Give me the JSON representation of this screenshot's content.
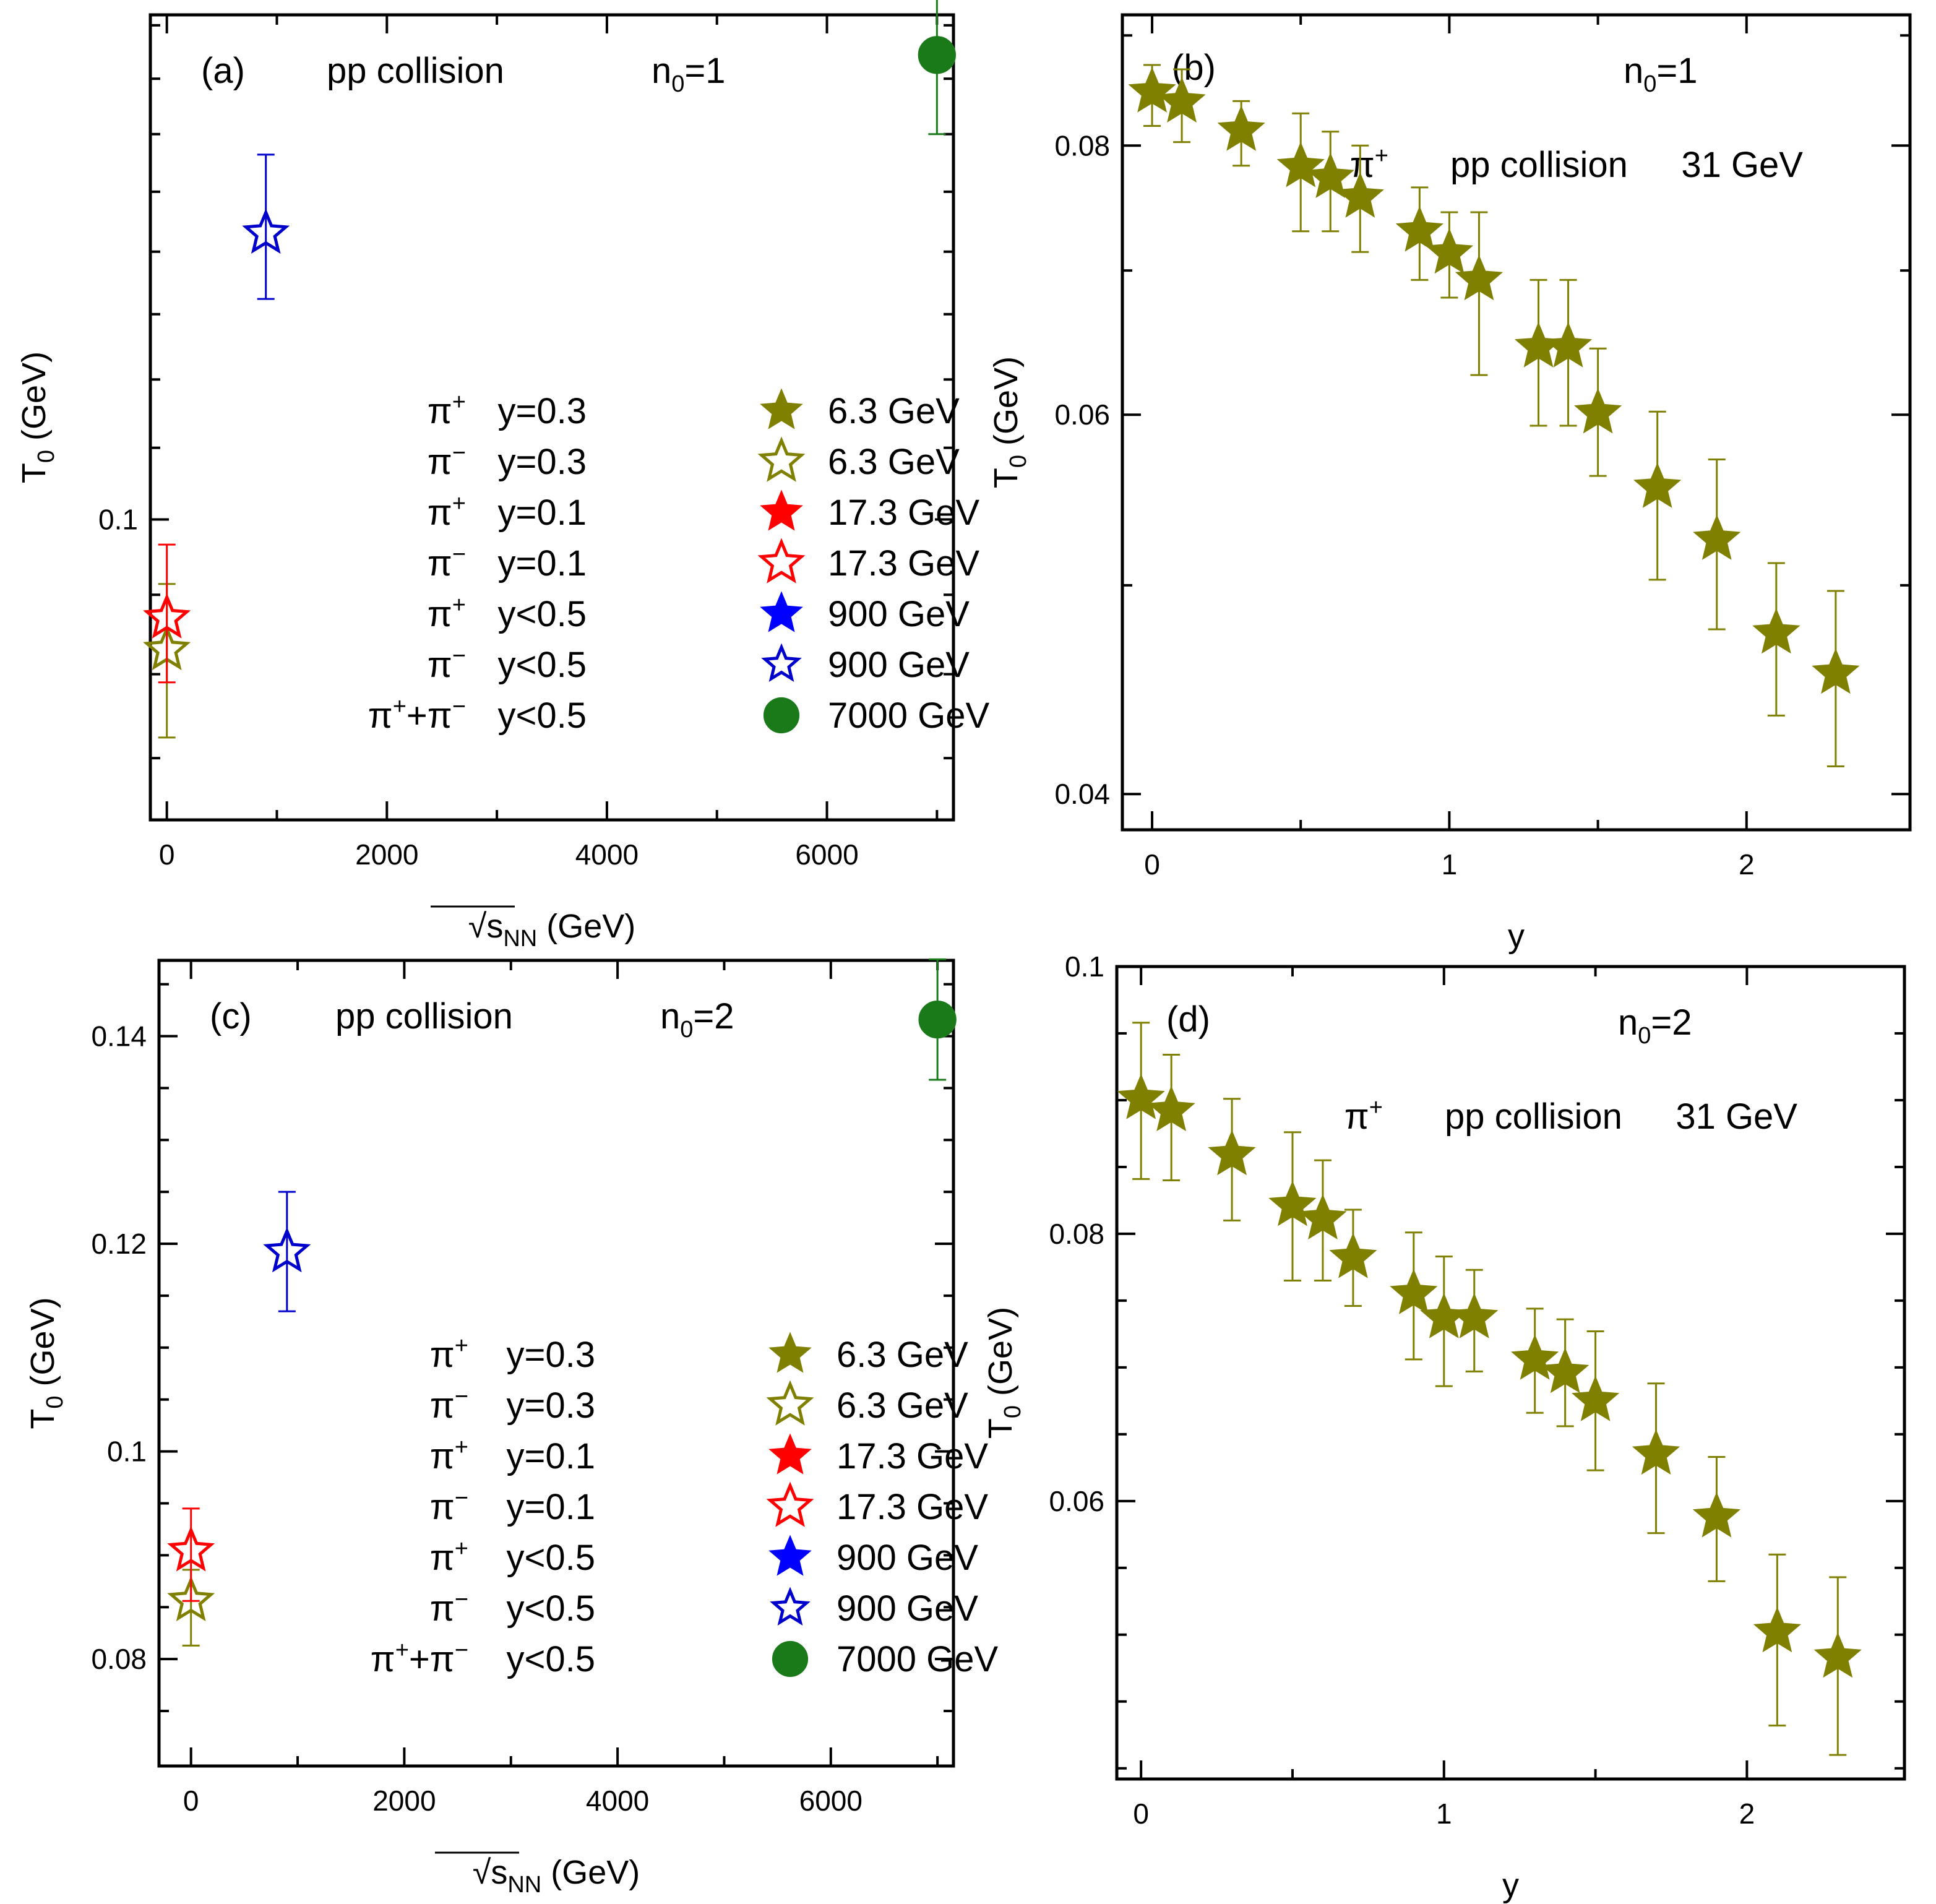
{
  "chart_data": [
    {
      "id": "a",
      "type": "scatter",
      "panel_label": "(a)",
      "collision_label": "pp collision",
      "n0_label": "n",
      "n0_sub": "0",
      "n0_value": "=1",
      "xlabel_radical": "√",
      "xlabel_var": "s",
      "xlabel_sub": "NN",
      "xlabel_unit": " (GeV)",
      "ylabel_var": "T",
      "ylabel_sub": "0",
      "ylabel_unit": " (GeV)",
      "scale": "log",
      "xlim": [
        -150,
        7150
      ],
      "ylim": [
        0.0815,
        0.141
      ],
      "xticks": [
        {
          "v": 0,
          "label": "0"
        },
        {
          "v": 2000,
          "label": "2000"
        },
        {
          "v": 4000,
          "label": "4000"
        },
        {
          "v": 6000,
          "label": "6000"
        }
      ],
      "xminor": [
        1000,
        3000,
        5000,
        7000
      ],
      "yticks": [
        {
          "v": 0.1,
          "label": "0.1"
        }
      ],
      "yminor": [
        0.085,
        0.09,
        0.095,
        0.105,
        0.11,
        0.115,
        0.12,
        0.125,
        0.13,
        0.135,
        0.14
      ],
      "points": [
        {
          "x": 0,
          "y": 0.0915,
          "err_lo": 0.0053,
          "err_hi": 0.0042,
          "marker": "star-open",
          "color": "#808000"
        },
        {
          "x": 0,
          "y": 0.0935,
          "err_lo": 0.004,
          "err_hi": 0.0048,
          "marker": "star-open",
          "color": "#ff0000"
        },
        {
          "x": 900,
          "y": 0.1215,
          "err_lo": 0.0053,
          "err_hi": 0.0067,
          "marker": "star-open",
          "color": "#0000cc"
        },
        {
          "x": 7000,
          "y": 0.1372,
          "err_lo": 0.0072,
          "err_hi": 0.0073,
          "marker": "circle",
          "color": "#1a7a1a"
        }
      ],
      "legend": [
        {
          "particle": "π",
          "sup": "+",
          "y_text": "y=0.3",
          "marker": "star-filled",
          "color": "#808000",
          "energy": "6.3 GeV"
        },
        {
          "particle": "π",
          "sup": "−",
          "y_text": "y=0.3",
          "marker": "star-open",
          "color": "#808000",
          "energy": "6.3 GeV"
        },
        {
          "particle": "π",
          "sup": "+",
          "y_text": "y=0.1",
          "marker": "star-filled",
          "color": "#ff0000",
          "energy": "17.3 GeV"
        },
        {
          "particle": "π",
          "sup": "−",
          "y_text": "y=0.1",
          "marker": "star-open",
          "color": "#ff0000",
          "energy": "17.3 GeV"
        },
        {
          "particle": "π",
          "sup": "+",
          "y_text": "y<0.5",
          "marker": "star-filled",
          "color": "#0000ff",
          "energy": "900 GeV"
        },
        {
          "particle": "π",
          "sup": "−",
          "y_text": "y<0.5",
          "marker": "star-open",
          "color": "#0000cc",
          "energy": "900 GeV"
        },
        {
          "particle": "π",
          "sup": "+",
          "particle2": "+π",
          "sup2": "−",
          "y_text": "y<0.5",
          "marker": "circle",
          "color": "#1a7a1a",
          "energy": "7000 GeV"
        }
      ]
    },
    {
      "id": "b",
      "type": "scatter",
      "panel_label": "(b)",
      "n0_label": "n",
      "n0_sub": "0",
      "n0_value": "=1",
      "particle": "π",
      "particle_sup": "+",
      "collision_label": "pp collision",
      "energy_label": "31 GeV",
      "xlabel": "y",
      "ylabel_var": "T",
      "ylabel_sub": "0",
      "ylabel_unit": " (GeV)",
      "scale": "log",
      "xlim": [
        -0.1,
        2.55
      ],
      "ylim": [
        0.0385,
        0.092
      ],
      "xticks": [
        {
          "v": 0,
          "label": "0"
        },
        {
          "v": 1,
          "label": "1"
        },
        {
          "v": 2,
          "label": "2"
        }
      ],
      "xminor": [
        0.5,
        1.5
      ],
      "yticks": [
        {
          "v": 0.04,
          "label": "0.04"
        },
        {
          "v": 0.06,
          "label": "0.06"
        },
        {
          "v": 0.08,
          "label": "0.08"
        }
      ],
      "yminor": [
        0.05,
        0.07,
        0.09
      ],
      "marker": "star-filled",
      "color": "#808000",
      "points": [
        {
          "x": 0.0,
          "y": 0.0847,
          "err_lo": 0.003,
          "err_hi": 0.0025
        },
        {
          "x": 0.1,
          "y": 0.0838,
          "err_lo": 0.0035,
          "err_hi": 0.003
        },
        {
          "x": 0.3,
          "y": 0.0813,
          "err_lo": 0.003,
          "err_hi": 0.0026
        },
        {
          "x": 0.5,
          "y": 0.0782,
          "err_lo": 0.0052,
          "err_hi": 0.0046
        },
        {
          "x": 0.6,
          "y": 0.0773,
          "err_lo": 0.0043,
          "err_hi": 0.0039
        },
        {
          "x": 0.7,
          "y": 0.0757,
          "err_lo": 0.0043,
          "err_hi": 0.0043
        },
        {
          "x": 0.9,
          "y": 0.073,
          "err_lo": 0.0037,
          "err_hi": 0.0035
        },
        {
          "x": 1.0,
          "y": 0.0713,
          "err_lo": 0.0033,
          "err_hi": 0.0032
        },
        {
          "x": 1.1,
          "y": 0.0693,
          "err_lo": 0.0067,
          "err_hi": 0.0052
        },
        {
          "x": 1.3,
          "y": 0.0645,
          "err_lo": 0.0052,
          "err_hi": 0.0048
        },
        {
          "x": 1.4,
          "y": 0.0645,
          "err_lo": 0.0052,
          "err_hi": 0.0048
        },
        {
          "x": 1.5,
          "y": 0.0601,
          "err_lo": 0.0039,
          "err_hi": 0.0043
        },
        {
          "x": 1.7,
          "y": 0.0555,
          "err_lo": 0.0052,
          "err_hi": 0.0047
        },
        {
          "x": 1.9,
          "y": 0.0525,
          "err_lo": 0.0048,
          "err_hi": 0.0047
        },
        {
          "x": 2.1,
          "y": 0.0475,
          "err_lo": 0.004,
          "err_hi": 0.0037
        },
        {
          "x": 2.3,
          "y": 0.0455,
          "err_lo": 0.0043,
          "err_hi": 0.0042
        }
      ]
    },
    {
      "id": "c",
      "type": "scatter",
      "panel_label": "(c)",
      "collision_label": "pp collision",
      "n0_label": "n",
      "n0_sub": "0",
      "n0_value": "=2",
      "xlabel_radical": "√",
      "xlabel_var": "s",
      "xlabel_sub": "NN",
      "xlabel_unit": " (GeV)",
      "ylabel_var": "T",
      "ylabel_sub": "0",
      "ylabel_unit": " (GeV)",
      "scale": "linear",
      "xlim": [
        -300,
        7150
      ],
      "ylim": [
        0.0697,
        0.1473
      ],
      "xticks": [
        {
          "v": 0,
          "label": "0"
        },
        {
          "v": 2000,
          "label": "2000"
        },
        {
          "v": 4000,
          "label": "4000"
        },
        {
          "v": 6000,
          "label": "6000"
        }
      ],
      "xminor": [
        1000,
        3000,
        5000,
        7000
      ],
      "yticks": [
        {
          "v": 0.08,
          "label": "0.08"
        },
        {
          "v": 0.1,
          "label": "0.1"
        },
        {
          "v": 0.12,
          "label": "0.12"
        },
        {
          "v": 0.14,
          "label": "0.14"
        }
      ],
      "yminor": [
        0.075,
        0.085,
        0.09,
        0.095,
        0.105,
        0.11,
        0.115,
        0.125,
        0.13,
        0.135,
        0.145
      ],
      "points": [
        {
          "x": 0,
          "y": 0.0856,
          "err_lo": 0.0043,
          "err_hi": 0.003
        },
        {
          "x": 0,
          "y": 0.0904,
          "err_lo": 0.0048,
          "err_hi": 0.0041
        },
        {
          "x": 900,
          "y": 0.1192,
          "err_lo": 0.0057,
          "err_hi": 0.0058
        },
        {
          "x": 7000,
          "y": 0.1416,
          "err_lo": 0.0058,
          "err_hi": 0.0058
        }
      ],
      "point_markers": [
        {
          "marker": "star-open",
          "color": "#808000"
        },
        {
          "marker": "star-open",
          "color": "#ff0000"
        },
        {
          "marker": "star-open",
          "color": "#0000cc"
        },
        {
          "marker": "circle",
          "color": "#1a7a1a"
        }
      ],
      "legend": [
        {
          "particle": "π",
          "sup": "+",
          "y_text": "y=0.3",
          "marker": "star-filled",
          "color": "#808000",
          "energy": "6.3 GeV"
        },
        {
          "particle": "π",
          "sup": "−",
          "y_text": "y=0.3",
          "marker": "star-open",
          "color": "#808000",
          "energy": "6.3 GeV"
        },
        {
          "particle": "π",
          "sup": "+",
          "y_text": "y=0.1",
          "marker": "star-filled",
          "color": "#ff0000",
          "energy": "17.3 GeV"
        },
        {
          "particle": "π",
          "sup": "−",
          "y_text": "y=0.1",
          "marker": "star-open",
          "color": "#ff0000",
          "energy": "17.3 GeV"
        },
        {
          "particle": "π",
          "sup": "+",
          "y_text": "y<0.5",
          "marker": "star-filled",
          "color": "#0000ff",
          "energy": "900 GeV"
        },
        {
          "particle": "π",
          "sup": "−",
          "y_text": "y<0.5",
          "marker": "star-open",
          "color": "#0000cc",
          "energy": "900 GeV"
        },
        {
          "particle": "π",
          "sup": "+",
          "particle2": "+π",
          "sup2": "−",
          "y_text": "y<0.5",
          "marker": "circle",
          "color": "#1a7a1a",
          "energy": "7000 GeV"
        }
      ]
    },
    {
      "id": "d",
      "type": "scatter",
      "panel_label": "(d)",
      "n0_label": "n",
      "n0_sub": "0",
      "n0_value": "=2",
      "particle": "π",
      "particle_sup": "+",
      "collision_label": "pp collision",
      "energy_label": "31 GeV",
      "xlabel": "y",
      "ylabel_var": "T",
      "ylabel_sub": "0",
      "ylabel_unit": " (GeV)",
      "scale": "linear",
      "xlim": [
        -0.08,
        2.52
      ],
      "ylim": [
        0.0392,
        0.1
      ],
      "xticks": [
        {
          "v": 0,
          "label": "0"
        },
        {
          "v": 1,
          "label": "1"
        },
        {
          "v": 2,
          "label": "2"
        }
      ],
      "xminor": [
        0.5,
        1.5
      ],
      "yticks": [
        {
          "v": 0.06,
          "label": "0.06"
        },
        {
          "v": 0.08,
          "label": "0.08"
        },
        {
          "v": 0.1,
          "label": "0.1"
        }
      ],
      "yminor": [
        0.04,
        0.045,
        0.05,
        0.055,
        0.065,
        0.07,
        0.075,
        0.085,
        0.09,
        0.095
      ],
      "marker": "star-filled",
      "color": "#808000",
      "points": [
        {
          "x": 0.0,
          "y": 0.0901,
          "err_lo": 0.006,
          "err_hi": 0.0057
        },
        {
          "x": 0.1,
          "y": 0.0892,
          "err_lo": 0.0052,
          "err_hi": 0.0042
        },
        {
          "x": 0.3,
          "y": 0.0859,
          "err_lo": 0.0049,
          "err_hi": 0.0042
        },
        {
          "x": 0.5,
          "y": 0.0821,
          "err_lo": 0.0056,
          "err_hi": 0.0055
        },
        {
          "x": 0.6,
          "y": 0.0811,
          "err_lo": 0.0046,
          "err_hi": 0.0044
        },
        {
          "x": 0.7,
          "y": 0.0782,
          "err_lo": 0.0036,
          "err_hi": 0.0036
        },
        {
          "x": 0.9,
          "y": 0.0755,
          "err_lo": 0.0049,
          "err_hi": 0.0046
        },
        {
          "x": 1.0,
          "y": 0.0737,
          "err_lo": 0.0051,
          "err_hi": 0.0046
        },
        {
          "x": 1.1,
          "y": 0.0737,
          "err_lo": 0.004,
          "err_hi": 0.0036
        },
        {
          "x": 1.3,
          "y": 0.0706,
          "err_lo": 0.004,
          "err_hi": 0.0038
        },
        {
          "x": 1.4,
          "y": 0.0696,
          "err_lo": 0.004,
          "err_hi": 0.004
        },
        {
          "x": 1.5,
          "y": 0.0675,
          "err_lo": 0.0052,
          "err_hi": 0.0052
        },
        {
          "x": 1.7,
          "y": 0.0635,
          "err_lo": 0.0059,
          "err_hi": 0.0053
        },
        {
          "x": 1.9,
          "y": 0.0588,
          "err_lo": 0.0048,
          "err_hi": 0.0045
        },
        {
          "x": 2.1,
          "y": 0.0502,
          "err_lo": 0.007,
          "err_hi": 0.0058
        },
        {
          "x": 2.3,
          "y": 0.0483,
          "err_lo": 0.0073,
          "err_hi": 0.006
        }
      ]
    }
  ]
}
